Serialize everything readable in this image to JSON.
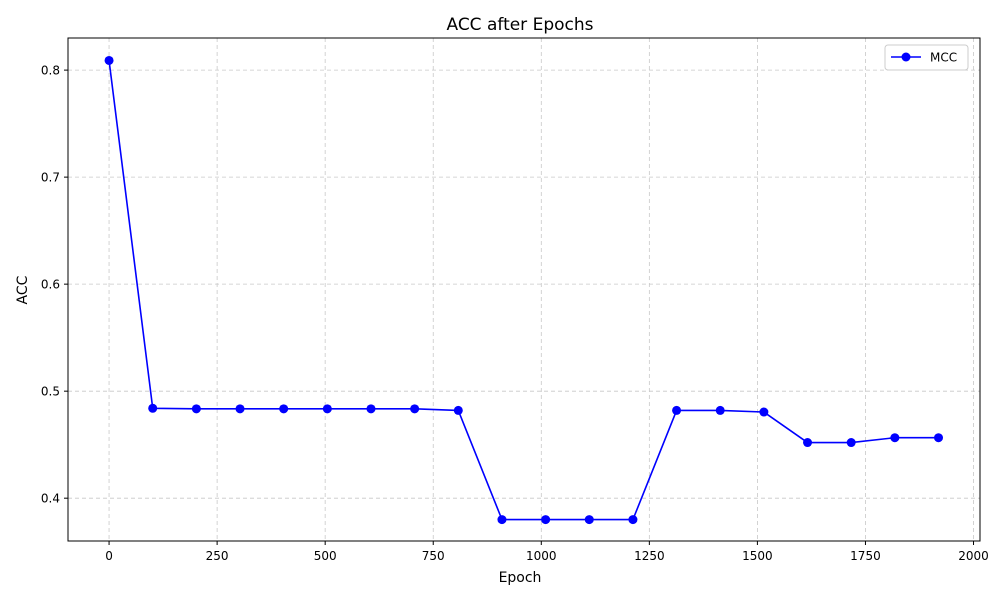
{
  "chart_data": {
    "type": "line",
    "title": "ACC after Epochs",
    "xlabel": "Epoch",
    "ylabel": "ACC",
    "xlim": [
      -95,
      2015
    ],
    "ylim": [
      0.36,
      0.83
    ],
    "xticks": [
      0,
      250,
      500,
      750,
      1000,
      1250,
      1500,
      1750,
      2000
    ],
    "yticks": [
      0.4,
      0.5,
      0.6,
      0.7,
      0.8
    ],
    "grid": true,
    "legend_position": "top-right",
    "series": [
      {
        "name": "MCC",
        "color": "#0000ff",
        "marker": "circle",
        "x": [
          0,
          101,
          202,
          303,
          404,
          505,
          606,
          707,
          808,
          909,
          1010,
          1111,
          1212,
          1313,
          1414,
          1515,
          1616,
          1717,
          1818,
          1919
        ],
        "y": [
          0.809,
          0.484,
          0.4835,
          0.4835,
          0.4835,
          0.4835,
          0.4835,
          0.4835,
          0.482,
          0.38,
          0.38,
          0.38,
          0.38,
          0.482,
          0.482,
          0.4805,
          0.452,
          0.452,
          0.4565,
          0.4565
        ]
      }
    ]
  }
}
